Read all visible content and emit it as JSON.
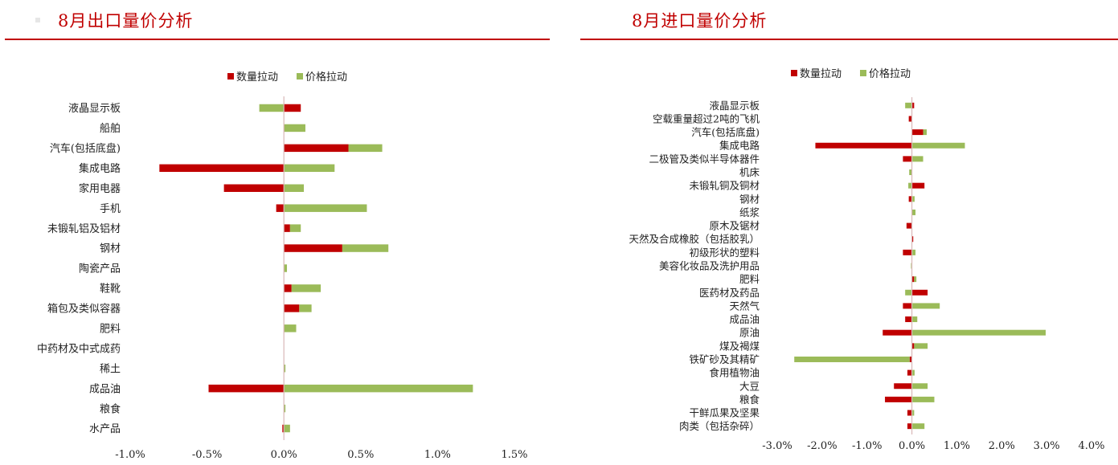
{
  "left_panel": {
    "title": "8月出口量价分析"
  },
  "right_panel": {
    "title": "8月进口量价分析"
  },
  "legend": {
    "quantity": "数量拉动",
    "price": "价格拉动"
  },
  "colors": {
    "quantity": "#c00000",
    "price": "#9bbb59",
    "axis": "#d9b8b8"
  },
  "chart_data": [
    {
      "type": "bar",
      "orientation": "horizontal",
      "stacked": true,
      "title": "8月出口量价分析",
      "categories": [
        "液晶显示板",
        "船舶",
        "汽车(包括底盘)",
        "集成电路",
        "家用电器",
        "手机",
        "未锻轧铝及铝材",
        "钢材",
        "陶瓷产品",
        "鞋靴",
        "箱包及类似容器",
        "肥料",
        "中药材及中式成药",
        "稀土",
        "成品油",
        "粮食",
        "水产品"
      ],
      "series": [
        {
          "name": "数量拉动",
          "values": [
            0.11,
            0.0,
            0.42,
            -0.81,
            -0.39,
            -0.05,
            0.04,
            0.38,
            0.0,
            0.05,
            0.1,
            0.0,
            0.0,
            0.0,
            -0.49,
            0.0,
            -0.01
          ]
        },
        {
          "name": "价格拉动",
          "values": [
            -0.16,
            0.14,
            0.22,
            0.33,
            0.13,
            0.54,
            0.07,
            0.3,
            0.02,
            0.19,
            0.08,
            0.08,
            0.0,
            0.01,
            1.23,
            0.01,
            0.04
          ]
        }
      ],
      "x_ticks": [
        "-1.0%",
        "-0.5%",
        "0.0%",
        "0.5%",
        "1.0%",
        "1.5%"
      ],
      "xlim": [
        -1.0,
        1.5
      ],
      "legend_position": "top"
    },
    {
      "type": "bar",
      "orientation": "horizontal",
      "stacked": true,
      "title": "8月进口量价分析",
      "categories": [
        "液晶显示板",
        "空载重量超过2吨的飞机",
        "汽车(包括底盘)",
        "集成电路",
        "二极管及类似半导体器件",
        "机床",
        "未锻轧铜及铜材",
        "钢材",
        "纸浆",
        "原木及锯材",
        "天然及合成橡胶（包括胶乳）",
        "初级形状的塑料",
        "美容化妆品及洗护用品",
        "肥料",
        "医药材及药品",
        "天然气",
        "成品油",
        "原油",
        "煤及褐煤",
        "铁矿砂及其精矿",
        "食用植物油",
        "大豆",
        "粮食",
        "干鲜瓜果及坚果",
        "肉类（包括杂碎）"
      ],
      "series": [
        {
          "name": "数量拉动",
          "values": [
            0.05,
            -0.07,
            0.25,
            -2.15,
            -0.2,
            0.0,
            0.28,
            -0.07,
            0.0,
            -0.12,
            0.03,
            -0.2,
            0.0,
            0.05,
            0.35,
            -0.2,
            -0.15,
            -0.65,
            0.05,
            -0.05,
            -0.1,
            -0.4,
            -0.6,
            -0.1,
            -0.1
          ]
        },
        {
          "name": "价格拉动",
          "values": [
            -0.15,
            0.0,
            0.08,
            1.18,
            0.25,
            -0.06,
            -0.08,
            0.06,
            0.08,
            0.0,
            0.0,
            0.08,
            -0.02,
            0.05,
            -0.15,
            0.62,
            0.12,
            2.98,
            0.3,
            -2.57,
            0.06,
            0.35,
            0.5,
            0.05,
            0.28
          ]
        }
      ],
      "x_ticks": [
        "-3.0%",
        "-2.0%",
        "-1.0%",
        "0.0%",
        "1.0%",
        "2.0%",
        "3.0%",
        "4.0%"
      ],
      "xlim": [
        -3.0,
        4.0
      ],
      "legend_position": "top"
    }
  ]
}
